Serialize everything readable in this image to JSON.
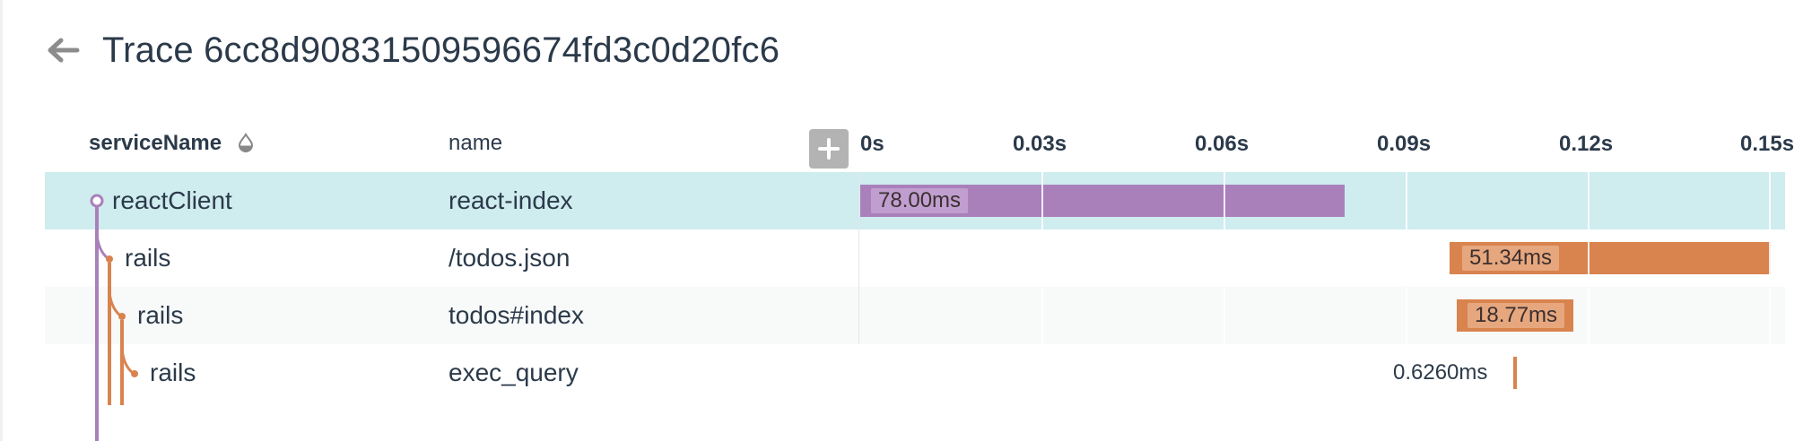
{
  "header": {
    "title": "Trace 6cc8d90831509596674fd3c0d20fc6",
    "back_icon": "arrow-left-icon"
  },
  "table": {
    "columns": {
      "service": "serviceName",
      "name": "name",
      "sort_icon": "sort-drop-icon",
      "expand_icon": "plus-icon"
    },
    "ticks": [
      "0s",
      "0.03s",
      "0.06s",
      "0.09s",
      "0.12s",
      "0.15s"
    ],
    "rows": [
      {
        "service": "reactClient",
        "name": "react-index",
        "duration": "78.00ms",
        "color": "#aa80bb"
      },
      {
        "service": "rails",
        "name": "/todos.json",
        "duration": "51.34ms",
        "color": "#d9834e"
      },
      {
        "service": "rails",
        "name": "todos#index",
        "duration": "18.77ms",
        "color": "#d9834e"
      },
      {
        "service": "rails",
        "name": "exec_query",
        "duration": "0.6260ms",
        "color": "#d9834e"
      }
    ]
  },
  "colors": {
    "accent_purple": "#aa80bb",
    "accent_orange": "#d9834e",
    "selected_row": "#cfecef"
  }
}
